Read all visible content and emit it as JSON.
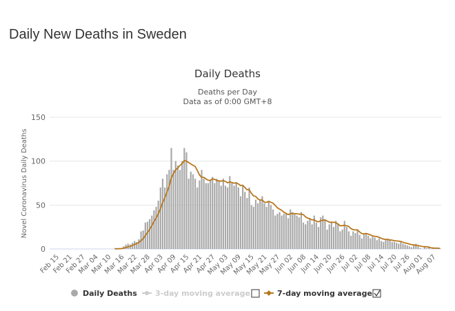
{
  "page": {
    "title": "Daily New Deaths in Sweden"
  },
  "chart_data": {
    "type": "bar",
    "title": "Daily Deaths",
    "subtitle": [
      "Deaths per Day",
      "Data as of 0:00 GMT+8"
    ],
    "xlabel": "",
    "ylabel": "Novel Coronavirus Daily Deaths",
    "ylim": [
      0,
      150
    ],
    "yticks": [
      0,
      50,
      100,
      150
    ],
    "grid": true,
    "legend_position": "bottom",
    "start_date": "Feb 15",
    "xtick_labels": [
      "Feb 15",
      "Feb 21",
      "Feb 27",
      "Mar 04",
      "Mar 10",
      "Mar 16",
      "Mar 22",
      "Mar 28",
      "Apr 03",
      "Apr 09",
      "Apr 15",
      "Apr 21",
      "Apr 27",
      "May 03",
      "May 09",
      "May 15",
      "May 21",
      "May 27",
      "Jun 02",
      "Jun 08",
      "Jun 14",
      "Jun 20",
      "Jun 26",
      "Jul 02",
      "Jul 08",
      "Jul 14",
      "Jul 20",
      "Jul 26",
      "Aug 01",
      "Aug 07"
    ],
    "colors": {
      "bars": "#a9a9a9",
      "ma7": "#b8761c",
      "ma3": "#cccccc"
    },
    "series": [
      {
        "name": "Daily Deaths",
        "type": "bar",
        "values": [
          0,
          0,
          0,
          0,
          0,
          0,
          0,
          0,
          0,
          0,
          0,
          0,
          0,
          0,
          0,
          0,
          0,
          0,
          0,
          0,
          0,
          0,
          0,
          0,
          0,
          0,
          0,
          1,
          0,
          1,
          1,
          3,
          5,
          6,
          5,
          7,
          9,
          8,
          11,
          20,
          21,
          30,
          31,
          34,
          38,
          44,
          48,
          55,
          70,
          80,
          70,
          85,
          90,
          115,
          90,
          100,
          95,
          90,
          100,
          115,
          110,
          80,
          88,
          85,
          80,
          70,
          78,
          90,
          80,
          75,
          75,
          78,
          82,
          75,
          80,
          78,
          72,
          80,
          72,
          70,
          83,
          75,
          72,
          76,
          70,
          60,
          72,
          65,
          58,
          70,
          50,
          48,
          56,
          52,
          55,
          60,
          52,
          48,
          55,
          50,
          45,
          38,
          40,
          42,
          38,
          40,
          41,
          35,
          45,
          42,
          40,
          38,
          36,
          42,
          30,
          28,
          32,
          35,
          28,
          38,
          30,
          25,
          36,
          38,
          34,
          22,
          28,
          30,
          25,
          32,
          28,
          20,
          22,
          32,
          25,
          20,
          15,
          20,
          18,
          22,
          16,
          12,
          18,
          17,
          15,
          12,
          14,
          13,
          10,
          12,
          9,
          8,
          10,
          12,
          11,
          8,
          8,
          7,
          6,
          8,
          6,
          5,
          4,
          3,
          2,
          4,
          6,
          3,
          1,
          0,
          2,
          1,
          2,
          0,
          1,
          0,
          0,
          1
        ]
      },
      {
        "name": "3-day moving average",
        "type": "line",
        "visible": false
      },
      {
        "name": "7-day moving average",
        "type": "line",
        "visible": true
      }
    ]
  },
  "legend": {
    "items": [
      {
        "label": "Daily Deaths"
      },
      {
        "label": "3-day moving average",
        "checked": false
      },
      {
        "label": "7-day moving average",
        "checked": true
      }
    ]
  }
}
